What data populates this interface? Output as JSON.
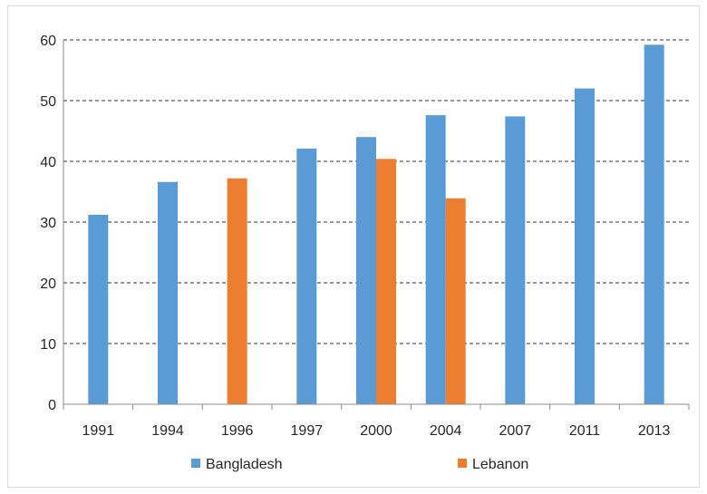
{
  "chart_data": {
    "type": "bar",
    "categories": [
      "1991",
      "1994",
      "1996",
      "1997",
      "2000",
      "2004",
      "2007",
      "2011",
      "2013"
    ],
    "series": [
      {
        "name": "Bangladesh",
        "color": "#5b9bd5",
        "values": [
          31.2,
          36.6,
          null,
          42.1,
          44.0,
          47.6,
          47.4,
          52.0,
          59.2
        ]
      },
      {
        "name": "Lebanon",
        "color": "#ed7d31",
        "values": [
          null,
          null,
          37.2,
          null,
          40.4,
          33.9,
          null,
          null,
          null
        ]
      }
    ],
    "ylim": [
      0,
      60
    ],
    "yticks": [
      0,
      10,
      20,
      30,
      40,
      50,
      60
    ],
    "title": "",
    "xlabel": "",
    "ylabel": "",
    "grid": "horizontal-dashed",
    "legend_position": "bottom"
  }
}
